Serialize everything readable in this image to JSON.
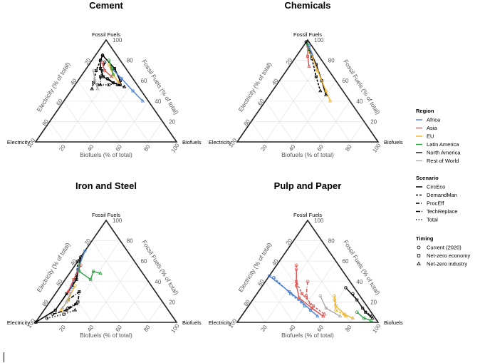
{
  "chart_data": [
    {
      "type": "ternary",
      "title": "Cement",
      "apex_labels": {
        "top": "Fossil Fuels",
        "left": "Electricity",
        "right": "Biofuels"
      },
      "axis_titles": {
        "left": "Electricity (% of total)",
        "right": "Fossil Fuels (% of total)",
        "bottom": "Biofuels (% of total)"
      },
      "ticks": [
        "20",
        "40",
        "60",
        "80",
        "100"
      ],
      "series": [
        {
          "region": "Total",
          "scenario": "CircEco",
          "points": [
            [
              10,
              85,
              5
            ],
            [
              14,
              80,
              6
            ],
            [
              18,
              72,
              10
            ],
            [
              20,
              64,
              16
            ],
            [
              16,
              58,
              26
            ],
            [
              12,
              56,
              32
            ],
            [
              10,
              60,
              30
            ],
            [
              8,
              72,
              20
            ],
            [
              10,
              85,
              5
            ]
          ]
        },
        {
          "region": "Total",
          "scenario": "DemandMan",
          "points": [
            [
              14,
              80,
              6
            ],
            [
              22,
              70,
              8
            ],
            [
              30,
              58,
              12
            ],
            [
              34,
              52,
              14
            ]
          ]
        },
        {
          "region": "Total",
          "scenario": "ProcEff",
          "points": [
            [
              12,
              78,
              10
            ],
            [
              22,
              64,
              14
            ],
            [
              26,
              56,
              18
            ]
          ]
        },
        {
          "region": "Total",
          "scenario": "TechReplace",
          "points": [
            [
              18,
              62,
              20
            ],
            [
              14,
              56,
              30
            ],
            [
              10,
              54,
              36
            ]
          ]
        },
        {
          "region": "Total",
          "scenario": "Total",
          "points": [
            [
              28,
              56,
              16
            ],
            [
              20,
              56,
              24
            ],
            [
              12,
              58,
              30
            ]
          ]
        },
        {
          "region": "Africa",
          "scenario": "CircEco",
          "points": [
            [
              10,
              72,
              18
            ],
            [
              8,
              62,
              30
            ],
            [
              6,
              50,
              44
            ],
            [
              4,
              40,
              56
            ]
          ]
        },
        {
          "region": "Asia",
          "scenario": "CircEco",
          "points": [
            [
              14,
              78,
              8
            ],
            [
              16,
              70,
              14
            ],
            [
              14,
              64,
              22
            ]
          ]
        },
        {
          "region": "EU",
          "scenario": "CircEco",
          "points": [
            [
              10,
              76,
              14
            ],
            [
              12,
              66,
              22
            ],
            [
              12,
              58,
              30
            ]
          ]
        },
        {
          "region": "Latin America",
          "scenario": "CircEco",
          "points": [
            [
              8,
              80,
              12
            ],
            [
              10,
              72,
              18
            ],
            [
              12,
              66,
              22
            ]
          ]
        },
        {
          "region": "Rest of World",
          "scenario": "CircEco",
          "points": [
            [
              24,
              70,
              6
            ],
            [
              28,
              60,
              12
            ],
            [
              30,
              52,
              18
            ]
          ]
        }
      ]
    },
    {
      "type": "ternary",
      "title": "Chemicals",
      "apex_labels": {
        "top": "Fossil Fuels",
        "left": "Electricity",
        "right": "Biofuels"
      },
      "axis_titles": {
        "left": "Electricity (% of total)",
        "right": "Fossil Fuels (% of total)",
        "bottom": "Biofuels (% of total)"
      },
      "ticks": [
        "20",
        "40",
        "60",
        "80",
        "100"
      ],
      "series": [
        {
          "region": "Total",
          "scenario": "CircEco",
          "points": [
            [
              2,
              98,
              0
            ],
            [
              4,
              88,
              8
            ],
            [
              6,
              76,
              18
            ],
            [
              10,
              60,
              30
            ],
            [
              14,
              46,
              40
            ]
          ]
        },
        {
          "region": "Total",
          "scenario": "DemandMan",
          "points": [
            [
              2,
              98,
              0
            ],
            [
              6,
              82,
              12
            ],
            [
              12,
              64,
              24
            ],
            [
              16,
              50,
              34
            ]
          ]
        },
        {
          "region": "Asia",
          "scenario": "CircEco",
          "points": [
            [
              3,
              94,
              3
            ],
            [
              8,
              84,
              8
            ],
            [
              12,
              74,
              14
            ]
          ]
        },
        {
          "region": "EU",
          "scenario": "CircEco",
          "points": [
            [
              4,
              88,
              8
            ],
            [
              8,
              70,
              22
            ],
            [
              12,
              50,
              38
            ],
            [
              14,
              40,
              46
            ]
          ]
        },
        {
          "region": "Latin America",
          "scenario": "CircEco",
          "points": [
            [
              2,
              96,
              2
            ],
            [
              4,
              90,
              6
            ]
          ]
        },
        {
          "region": "Africa",
          "scenario": "CircEco",
          "points": [
            [
              2,
              94,
              4
            ],
            [
              4,
              86,
              10
            ]
          ]
        }
      ]
    },
    {
      "type": "ternary",
      "title": "Iron and Steel",
      "apex_labels": {
        "top": "Fossil Fuels",
        "left": "Electricity",
        "right": "Biofuels"
      },
      "axis_titles": {
        "left": "Electricity (% of total)",
        "right": "Fossil Fuels (% of total)",
        "bottom": "Biofuels (% of total)"
      },
      "ticks": [
        "20",
        "40",
        "60",
        "80",
        "100"
      ],
      "series": [
        {
          "region": "Total",
          "scenario": "CircEco",
          "points": [
            [
              36,
              64,
              0
            ],
            [
              50,
              42,
              8
            ],
            [
              64,
              28,
              8
            ],
            [
              80,
              12,
              8
            ],
            [
              100,
              0,
              0
            ]
          ]
        },
        {
          "region": "Total",
          "scenario": "DemandMan",
          "points": [
            [
              40,
              60,
              0
            ],
            [
              48,
              46,
              6
            ],
            [
              56,
              36,
              8
            ]
          ]
        },
        {
          "region": "Total",
          "scenario": "ProcEff",
          "points": [
            [
              70,
              14,
              16
            ],
            [
              60,
              20,
              20
            ],
            [
              54,
              30,
              16
            ],
            [
              66,
              22,
              12
            ]
          ]
        },
        {
          "region": "Total",
          "scenario": "TechReplace",
          "points": [
            [
              84,
              8,
              8
            ],
            [
              72,
              12,
              16
            ],
            [
              62,
              18,
              20
            ]
          ]
        },
        {
          "region": "Total",
          "scenario": "Total",
          "points": [
            [
              90,
              4,
              6
            ],
            [
              76,
              8,
              16
            ],
            [
              66,
              12,
              22
            ]
          ]
        },
        {
          "region": "Africa",
          "scenario": "CircEco",
          "points": [
            [
              30,
              70,
              0
            ],
            [
              44,
              52,
              4
            ],
            [
              58,
              34,
              8
            ]
          ]
        },
        {
          "region": "Asia",
          "scenario": "CircEco",
          "points": [
            [
              40,
              56,
              4
            ],
            [
              52,
              42,
              6
            ],
            [
              62,
              30,
              8
            ]
          ]
        },
        {
          "region": "EU",
          "scenario": "CircEco",
          "points": [
            [
              54,
              36,
              10
            ],
            [
              66,
              22,
              12
            ],
            [
              76,
              12,
              12
            ]
          ]
        },
        {
          "region": "Latin America",
          "scenario": "CircEco",
          "points": [
            [
              40,
              58,
              2
            ],
            [
              44,
              50,
              6
            ],
            [
              40,
              42,
              18
            ],
            [
              34,
              50,
              16
            ],
            [
              30,
              48,
              22
            ]
          ]
        },
        {
          "region": "Rest of World",
          "scenario": "CircEco",
          "points": [
            [
              60,
              30,
              10
            ],
            [
              68,
              20,
              12
            ],
            [
              74,
              14,
              12
            ]
          ]
        }
      ]
    },
    {
      "type": "ternary",
      "title": "Pulp and Paper",
      "apex_labels": {
        "top": "Fossil Fuels",
        "left": "Electricity",
        "right": "Biofuels"
      },
      "axis_titles": {
        "left": "Electricity (% of total)",
        "right": "Fossil Fuels (% of total)",
        "bottom": "Biofuels (% of total)"
      },
      "ticks": [
        "20",
        "40",
        "60",
        "80",
        "100"
      ],
      "series": [
        {
          "region": "Africa",
          "scenario": "CircEco",
          "points": [
            [
              55,
              46,
              0
            ],
            [
              48,
              30,
              22
            ],
            [
              44,
              20,
              36
            ],
            [
              42,
              12,
              46
            ],
            [
              40,
              6,
              54
            ]
          ]
        },
        {
          "region": "Africa",
          "scenario": "DemandMan",
          "points": [
            [
              52,
              44,
              4
            ],
            [
              48,
              28,
              24
            ],
            [
              44,
              16,
              40
            ]
          ]
        },
        {
          "region": "Asia",
          "scenario": "CircEco",
          "points": [
            [
              32,
              52,
              16
            ],
            [
              40,
              36,
              24
            ],
            [
              44,
              24,
              32
            ],
            [
              40,
              14,
              46
            ],
            [
              36,
              6,
              58
            ]
          ]
        },
        {
          "region": "Asia",
          "scenario": "DemandMan",
          "points": [
            [
              30,
              56,
              14
            ],
            [
              38,
              40,
              22
            ],
            [
              40,
              28,
              32
            ],
            [
              38,
              16,
              46
            ],
            [
              34,
              8,
              58
            ]
          ]
        },
        {
          "region": "Asia",
          "scenario": "ProcEff",
          "points": [
            [
              30,
              40,
              30
            ],
            [
              38,
              26,
              36
            ],
            [
              40,
              14,
              46
            ],
            [
              36,
              6,
              58
            ]
          ]
        },
        {
          "region": "EU",
          "scenario": "CircEco",
          "points": [
            [
              18,
              26,
              56
            ],
            [
              22,
              16,
              62
            ],
            [
              20,
              8,
              72
            ],
            [
              16,
              4,
              80
            ]
          ]
        },
        {
          "region": "EU",
          "scenario": "DemandMan",
          "points": [
            [
              20,
              22,
              58
            ],
            [
              24,
              12,
              64
            ],
            [
              20,
              6,
              74
            ]
          ]
        },
        {
          "region": "North America",
          "scenario": "CircEco",
          "points": [
            [
              6,
              34,
              60
            ],
            [
              4,
              22,
              74
            ],
            [
              4,
              10,
              86
            ],
            [
              2,
              4,
              94
            ]
          ]
        },
        {
          "region": "North America",
          "scenario": "DemandMan",
          "points": [
            [
              4,
              28,
              68
            ],
            [
              4,
              14,
              82
            ],
            [
              2,
              6,
              92
            ]
          ]
        },
        {
          "region": "Latin America",
          "scenario": "CircEco",
          "points": [
            [
              10,
              10,
              80
            ],
            [
              8,
              4,
              88
            ],
            [
              4,
              2,
              94
            ]
          ]
        },
        {
          "region": "Rest of World",
          "scenario": "CircEco",
          "points": [
            [
              28,
              26,
              46
            ],
            [
              30,
              14,
              56
            ],
            [
              24,
              6,
              70
            ]
          ]
        }
      ]
    }
  ],
  "legend": {
    "region": {
      "title": "Region",
      "items": [
        {
          "label": "Africa",
          "color": "#4a7fd4"
        },
        {
          "label": "Asia",
          "color": "#d9534f"
        },
        {
          "label": "EU",
          "color": "#f0b429"
        },
        {
          "label": "Latin America",
          "color": "#2e9e44"
        },
        {
          "label": "North America",
          "color": "#111111"
        },
        {
          "label": "Rest of World",
          "color": "#aaaaaa"
        }
      ]
    },
    "scenario": {
      "title": "Scenario",
      "items": [
        {
          "label": "CircEco",
          "dash": "none"
        },
        {
          "label": "DemandMan",
          "dash": "3,2"
        },
        {
          "label": "ProcEff",
          "dash": "5,2,1,2"
        },
        {
          "label": "TechReplace",
          "dash": "6,2"
        },
        {
          "label": "Total",
          "dash": "1.2,2.5"
        }
      ]
    },
    "timing": {
      "title": "Timing",
      "items": [
        {
          "label": "Current (2020)",
          "marker": "circle"
        },
        {
          "label": "Net-zero economy",
          "marker": "square"
        },
        {
          "label": "Net-zero industry",
          "marker": "triangle"
        }
      ]
    }
  }
}
